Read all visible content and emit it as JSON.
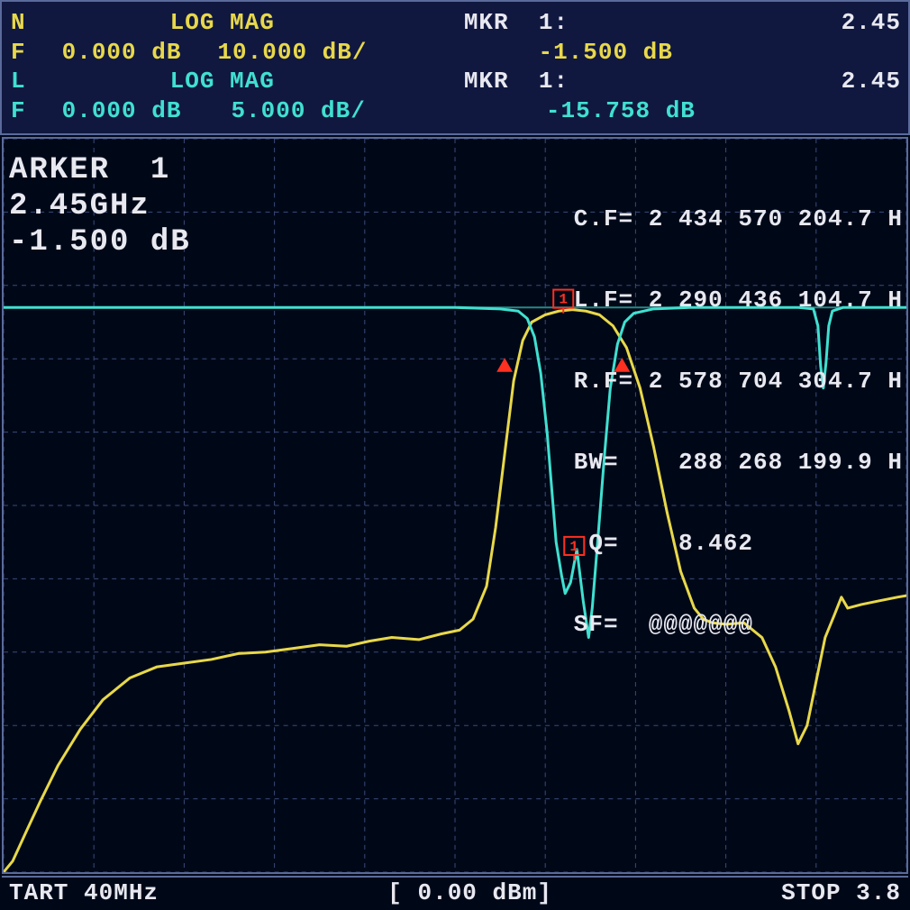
{
  "colors": {
    "bg": "#000818",
    "panel": "#101840",
    "border": "#5a6a9a",
    "grid": "#3a4a7a",
    "grid_minor": "#2a3560",
    "white": "#e8e8f0",
    "yellow": "#e8d84a",
    "cyan": "#40e0d0",
    "marker": "#ff3020"
  },
  "header": {
    "row1": {
      "left_flag": "N",
      "mode": "LOG MAG",
      "mkr_label": "MKR  1:",
      "mkr_freq": "2.45"
    },
    "row2": {
      "left_flag": "F",
      "ref": "0.000 dB",
      "scale": "10.000 dB/",
      "mkr_val": "-1.500 dB"
    },
    "row3": {
      "left_flag": "L",
      "mode": "LOG MAG",
      "mkr_label": "MKR  1:",
      "mkr_freq": "2.45"
    },
    "row4": {
      "left_flag": "F",
      "ref": "0.000 dB",
      "scale": "5.000 dB/",
      "mkr_val": "-15.758 dB"
    }
  },
  "marker_box": {
    "line1": "ARKER  1",
    "line2": "2.45GHz",
    "line3": "-1.500 dB"
  },
  "info": {
    "cf": "C.F= 2 434 570 204.7 H",
    "lf": "L.F= 2 290 436 104.7 H",
    "rf": "R.F= 2 578 704 304.7 H",
    "bw": "BW=    288 268 199.9 H",
    "q": " Q=    8.462",
    "sf": "SF=  @@@@@@@"
  },
  "footer": {
    "start": "TART 40MHz",
    "level": "[  0.00 dBm]",
    "stop": "STOP 3.8"
  },
  "chart": {
    "grid": {
      "cols": 10,
      "rows": 10
    },
    "xlim": [
      0,
      10
    ],
    "ylim_trace1": [
      -80,
      0
    ],
    "ylim_trace2": [
      -40,
      0
    ],
    "ref_line_y": 2.3,
    "marker1": {
      "x": 6.2,
      "y_yellow": 2.33,
      "y_cyan": 5.7
    },
    "bw_arrows": {
      "y": 3.0,
      "xl": 5.55,
      "xr": 6.85
    },
    "trace_yellow": {
      "color": "#e8d84a",
      "width": 3,
      "points": [
        [
          0.0,
          10.0
        ],
        [
          0.1,
          9.85
        ],
        [
          0.25,
          9.45
        ],
        [
          0.4,
          9.05
        ],
        [
          0.6,
          8.55
        ],
        [
          0.85,
          8.05
        ],
        [
          1.1,
          7.65
        ],
        [
          1.4,
          7.35
        ],
        [
          1.7,
          7.2
        ],
        [
          2.0,
          7.15
        ],
        [
          2.3,
          7.1
        ],
        [
          2.6,
          7.02
        ],
        [
          2.9,
          7.0
        ],
        [
          3.2,
          6.95
        ],
        [
          3.5,
          6.9
        ],
        [
          3.8,
          6.92
        ],
        [
          4.05,
          6.85
        ],
        [
          4.3,
          6.8
        ],
        [
          4.6,
          6.83
        ],
        [
          4.85,
          6.75
        ],
        [
          5.05,
          6.7
        ],
        [
          5.2,
          6.55
        ],
        [
          5.35,
          6.1
        ],
        [
          5.45,
          5.3
        ],
        [
          5.55,
          4.3
        ],
        [
          5.65,
          3.3
        ],
        [
          5.75,
          2.75
        ],
        [
          5.85,
          2.5
        ],
        [
          6.0,
          2.4
        ],
        [
          6.15,
          2.35
        ],
        [
          6.3,
          2.33
        ],
        [
          6.45,
          2.35
        ],
        [
          6.6,
          2.4
        ],
        [
          6.75,
          2.55
        ],
        [
          6.9,
          2.85
        ],
        [
          7.05,
          3.4
        ],
        [
          7.2,
          4.2
        ],
        [
          7.35,
          5.1
        ],
        [
          7.5,
          5.9
        ],
        [
          7.65,
          6.4
        ],
        [
          7.75,
          6.55
        ],
        [
          7.85,
          6.6
        ],
        [
          8.0,
          6.62
        ],
        [
          8.2,
          6.6
        ],
        [
          8.4,
          6.8
        ],
        [
          8.55,
          7.2
        ],
        [
          8.7,
          7.8
        ],
        [
          8.8,
          8.25
        ],
        [
          8.9,
          8.0
        ],
        [
          9.0,
          7.4
        ],
        [
          9.1,
          6.8
        ],
        [
          9.2,
          6.5
        ],
        [
          9.28,
          6.25
        ],
        [
          9.35,
          6.4
        ],
        [
          9.5,
          6.35
        ],
        [
          9.7,
          6.3
        ],
        [
          9.9,
          6.25
        ],
        [
          10.0,
          6.23
        ]
      ]
    },
    "trace_cyan": {
      "color": "#40e0d0",
      "width": 3,
      "points": [
        [
          0.0,
          2.3
        ],
        [
          1.0,
          2.3
        ],
        [
          2.0,
          2.3
        ],
        [
          3.0,
          2.3
        ],
        [
          4.0,
          2.3
        ],
        [
          5.0,
          2.3
        ],
        [
          5.5,
          2.32
        ],
        [
          5.7,
          2.35
        ],
        [
          5.8,
          2.45
        ],
        [
          5.88,
          2.7
        ],
        [
          5.95,
          3.2
        ],
        [
          6.02,
          4.0
        ],
        [
          6.08,
          4.9
        ],
        [
          6.12,
          5.5
        ],
        [
          6.18,
          5.95
        ],
        [
          6.22,
          6.2
        ],
        [
          6.28,
          6.05
        ],
        [
          6.35,
          5.6
        ],
        [
          6.42,
          6.3
        ],
        [
          6.48,
          6.8
        ],
        [
          6.52,
          6.4
        ],
        [
          6.58,
          5.5
        ],
        [
          6.65,
          4.4
        ],
        [
          6.72,
          3.4
        ],
        [
          6.8,
          2.8
        ],
        [
          6.88,
          2.5
        ],
        [
          6.98,
          2.38
        ],
        [
          7.2,
          2.32
        ],
        [
          7.6,
          2.3
        ],
        [
          8.2,
          2.3
        ],
        [
          8.8,
          2.3
        ],
        [
          8.97,
          2.32
        ],
        [
          9.02,
          2.55
        ],
        [
          9.05,
          3.1
        ],
        [
          9.08,
          3.4
        ],
        [
          9.11,
          3.05
        ],
        [
          9.14,
          2.55
        ],
        [
          9.18,
          2.35
        ],
        [
          9.3,
          2.3
        ],
        [
          9.6,
          2.3
        ],
        [
          10.0,
          2.3
        ]
      ]
    }
  }
}
